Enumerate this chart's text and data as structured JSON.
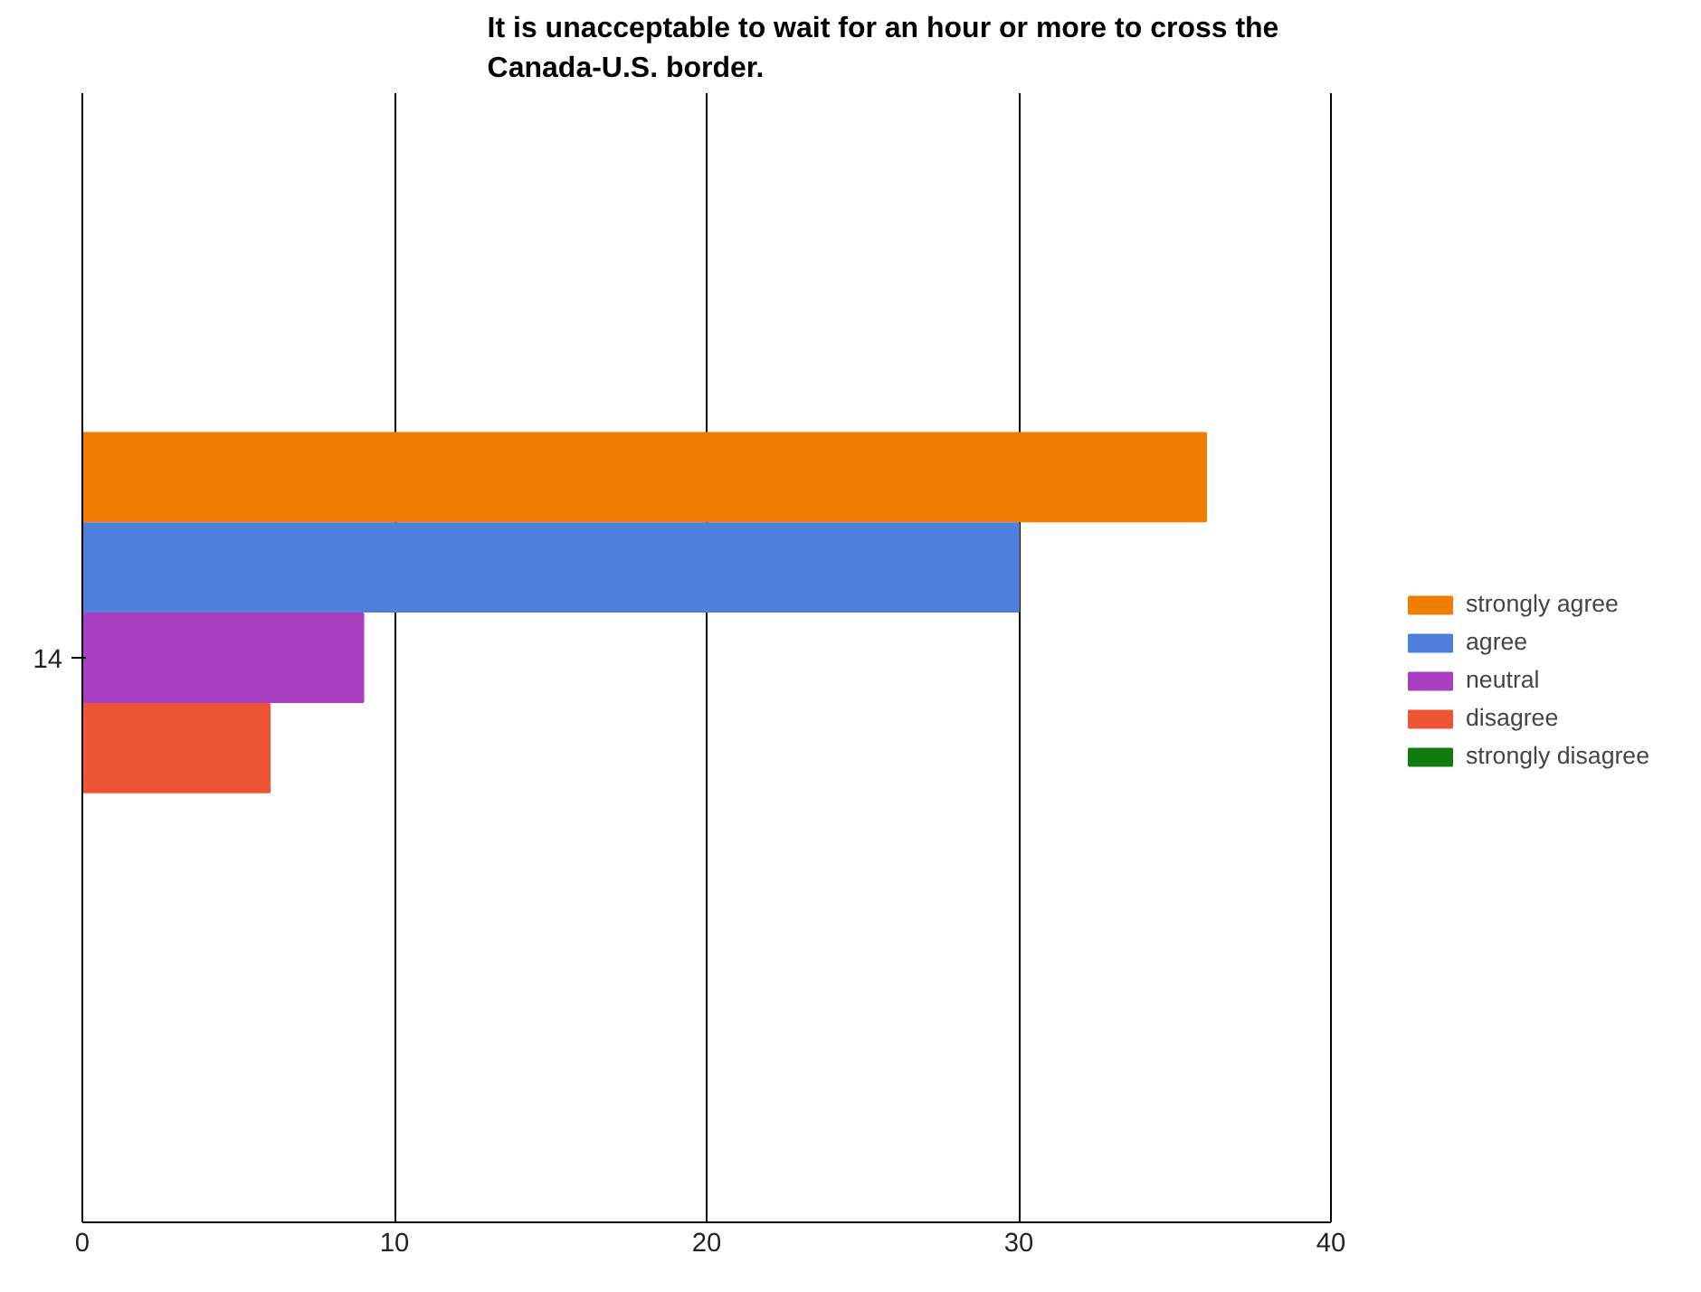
{
  "chart_data": {
    "type": "bar",
    "orientation": "horizontal",
    "title": "It is unacceptable to wait for an hour or more to cross the Canada-U.S. border.",
    "categories": [
      "14"
    ],
    "series": [
      {
        "name": "strongly agree",
        "color": "#ee7d00",
        "values": [
          36
        ]
      },
      {
        "name": "agree",
        "color": "#4f7fdc",
        "values": [
          30
        ]
      },
      {
        "name": "neutral",
        "color": "#a73fc0",
        "values": [
          9
        ]
      },
      {
        "name": "disagree",
        "color": "#ee5535",
        "values": [
          6
        ]
      },
      {
        "name": "strongly disagree",
        "color": "#107c10",
        "values": [
          0
        ]
      }
    ],
    "xlim": [
      0,
      40
    ],
    "xticks": [
      0,
      10,
      20,
      30,
      40
    ],
    "grid": "x",
    "legend": "right"
  }
}
